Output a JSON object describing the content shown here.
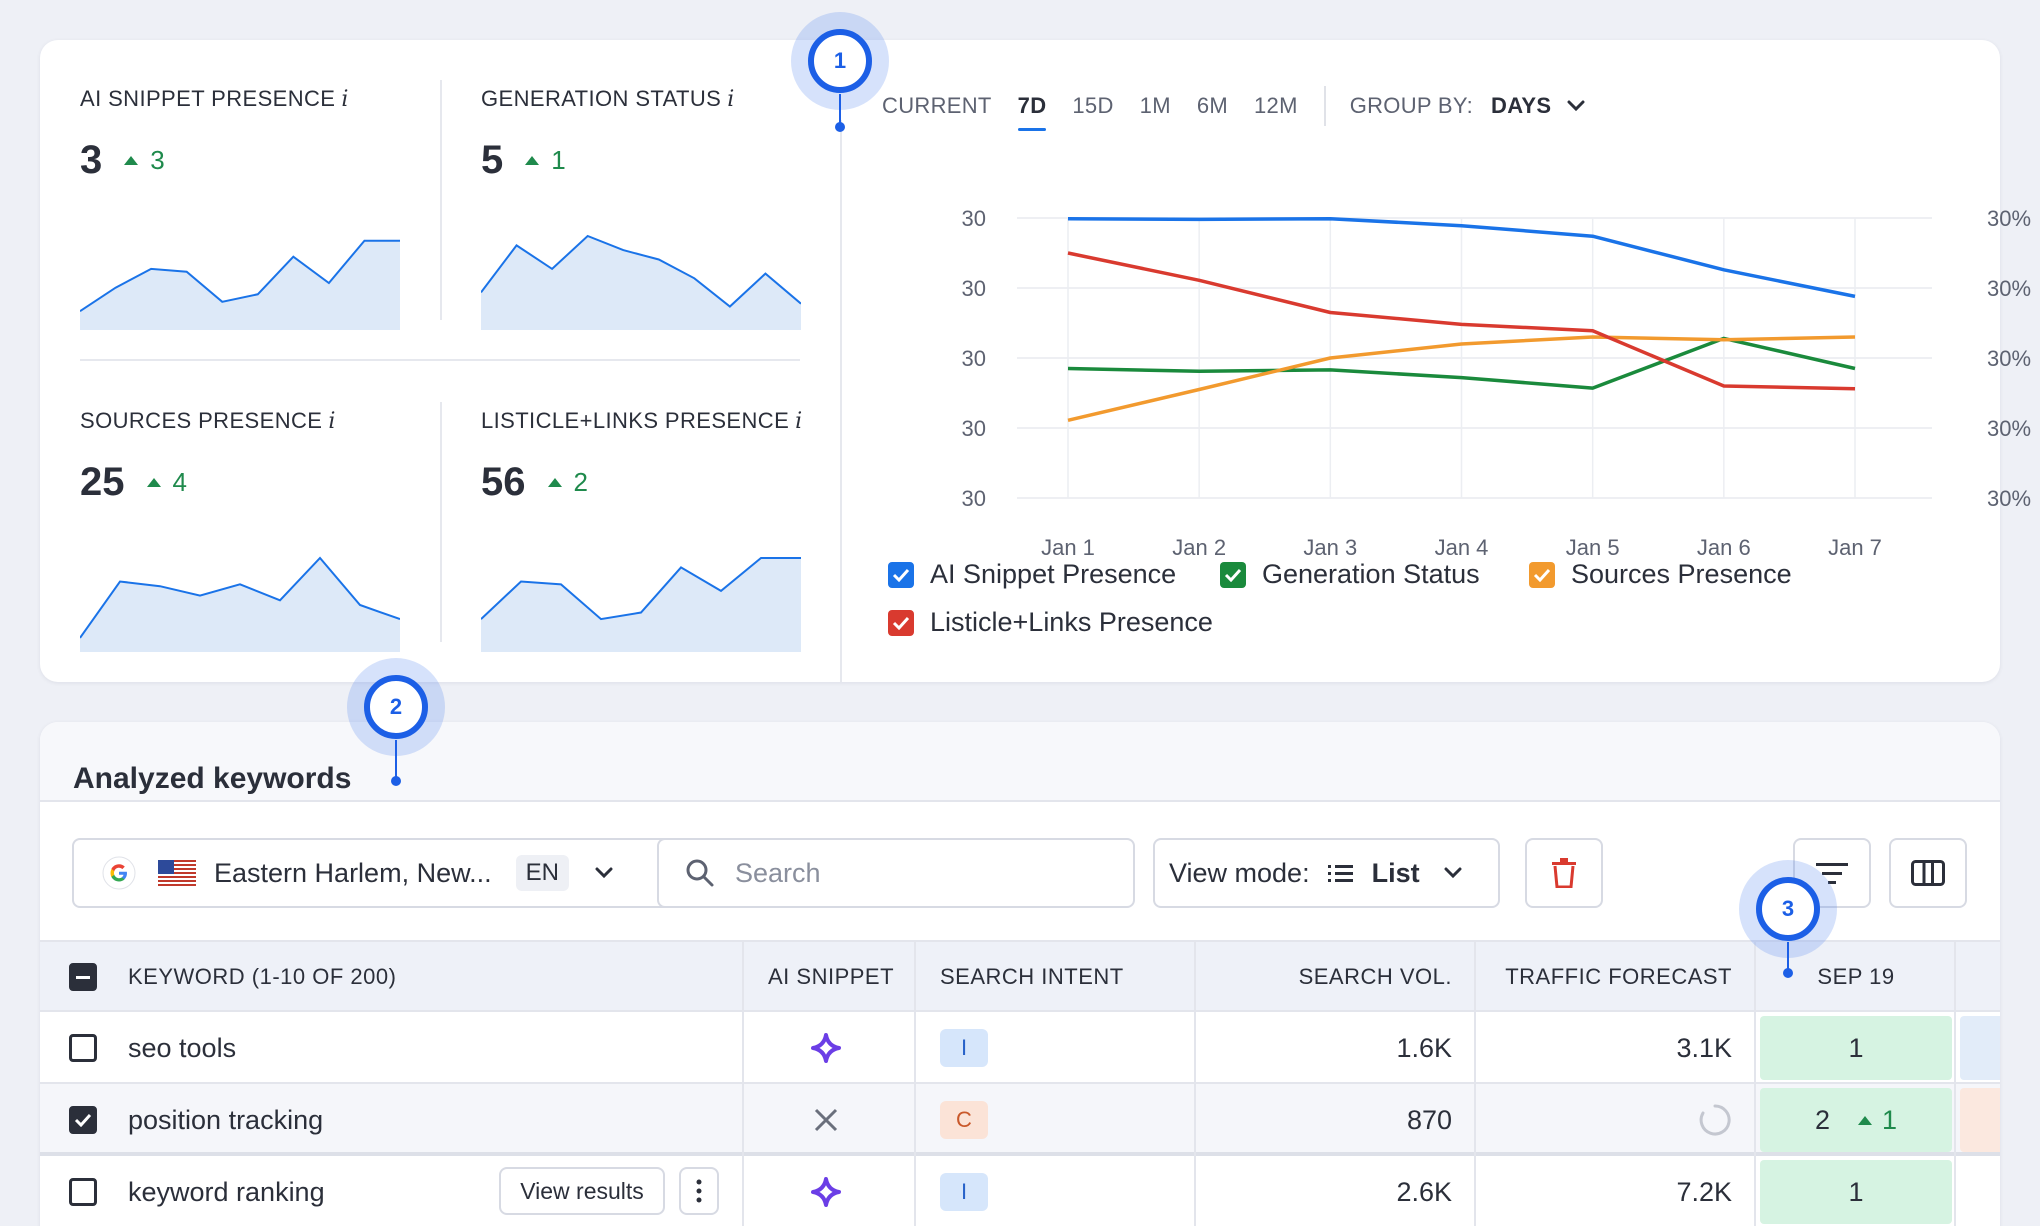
{
  "metrics": [
    {
      "label": "AI SNIPPET PRESENCE",
      "info": "i",
      "value": "3",
      "delta": "3",
      "spark": [
        0.2,
        0.45,
        0.65,
        0.62,
        0.3,
        0.38,
        0.78,
        0.5,
        0.95,
        0.95
      ]
    },
    {
      "label": "GENERATION STATUS",
      "info": "i",
      "value": "5",
      "delta": "1",
      "spark": [
        0.4,
        0.9,
        0.65,
        1.0,
        0.85,
        0.75,
        0.55,
        0.25,
        0.6,
        0.28
      ]
    },
    {
      "label": "SOURCES PRESENCE",
      "info": "i",
      "value": "25",
      "delta": "4",
      "spark": [
        0.15,
        0.75,
        0.7,
        0.6,
        0.72,
        0.55,
        1.0,
        0.5,
        0.35
      ]
    },
    {
      "label": "LISTICLE+LINKS PRESENCE",
      "info": "i",
      "value": "56",
      "delta": "2",
      "spark": [
        0.35,
        0.75,
        0.72,
        0.35,
        0.42,
        0.9,
        0.65,
        1.0,
        1.0
      ]
    }
  ],
  "period": {
    "tabs": [
      "CURRENT",
      "7D",
      "15D",
      "1M",
      "6M",
      "12M"
    ],
    "active": "7D",
    "group_by_label": "GROUP BY:",
    "group_by_value": "DAYS"
  },
  "chart_data": {
    "type": "line",
    "x": [
      "Jan 1",
      "Jan 2",
      "Jan 3",
      "Jan 4",
      "Jan 5",
      "Jan 6",
      "Jan 7"
    ],
    "y_left_ticks": [
      "30",
      "30",
      "30",
      "30",
      "30"
    ],
    "y_right_ticks": [
      "30%",
      "30%",
      "30%",
      "30%",
      "30%"
    ],
    "ylim": [
      0,
      4
    ],
    "series": [
      {
        "name": "AI Snippet Presence",
        "color": "#1a73e8",
        "values": [
          3.99,
          3.98,
          3.99,
          3.89,
          3.74,
          3.26,
          2.88
        ]
      },
      {
        "name": "Generation Status",
        "color": "#1a8a3c",
        "values": [
          1.85,
          1.81,
          1.83,
          1.72,
          1.57,
          2.28,
          1.85
        ]
      },
      {
        "name": "Sources Presence",
        "color": "#f29a2e",
        "values": [
          1.11,
          1.55,
          2.0,
          2.2,
          2.3,
          2.26,
          2.3
        ]
      },
      {
        "name": "Listicle+Links Presence",
        "color": "#d93a2f",
        "values": [
          3.5,
          3.11,
          2.65,
          2.48,
          2.39,
          1.6,
          1.56
        ]
      }
    ],
    "grid": true,
    "legend": "bottom"
  },
  "markers": [
    "1",
    "2",
    "3"
  ],
  "keywords": {
    "title": "Analyzed keywords",
    "location": "Eastern Harlem, New...",
    "lang": "EN",
    "search_placeholder": "Search",
    "view_mode_label": "View mode:",
    "view_mode_value": "List",
    "columns": [
      "KEYWORD (1-10 OF 200)",
      "AI SNIPPET",
      "SEARCH INTENT",
      "SEARCH VOL.",
      "TRAFFIC FORECAST",
      "SEP 19"
    ],
    "rows": [
      {
        "keyword": "seo tools",
        "checked": false,
        "snippet": "sparkle",
        "intent": "I",
        "volume": "1.6K",
        "traffic": "3.1K",
        "position": "1",
        "delta": ""
      },
      {
        "keyword": "position tracking",
        "checked": true,
        "snippet": "none",
        "intent": "C",
        "volume": "870",
        "traffic": "",
        "position": "2",
        "delta": "1"
      },
      {
        "keyword": "keyword ranking",
        "checked": false,
        "snippet": "sparkle",
        "intent": "I",
        "volume": "2.6K",
        "traffic": "7.2K",
        "position": "1",
        "delta": "",
        "action": "View results"
      }
    ]
  },
  "icons": [
    "info-icon",
    "chevron-down-icon",
    "checkbox-icon",
    "google-icon",
    "us-flag-icon",
    "search-icon",
    "list-icon",
    "trash-icon",
    "filter-icon",
    "columns-icon",
    "sparkle-icon",
    "close-icon",
    "spinner-icon",
    "more-vertical-icon"
  ]
}
